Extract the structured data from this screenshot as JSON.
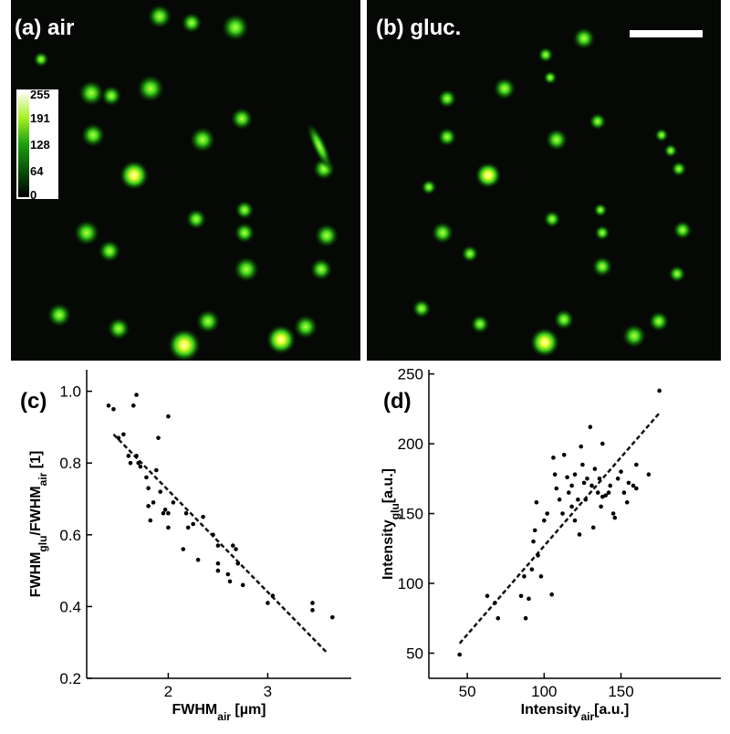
{
  "images": [
    {
      "label": "(a) air"
    },
    {
      "label": "(b) gluc."
    }
  ],
  "colorbar": {
    "ticks": [
      255,
      191,
      128,
      64,
      0
    ]
  },
  "chart_data": [
    {
      "type": "scatter",
      "label": "(c)",
      "xlabel": [
        "FWHM",
        "air",
        " [µm]"
      ],
      "ylabel": [
        "FWHM",
        "glu",
        "/FWHM",
        "air",
        " [1]"
      ],
      "xlim": [
        1.18,
        3.84
      ],
      "xticks": [
        2,
        3
      ],
      "ylim": [
        0.2,
        1.06
      ],
      "yticks": [
        0.2,
        0.4,
        0.6,
        0.8,
        {
          "value": 1.0,
          "label": "1.0"
        }
      ],
      "color": "#000000",
      "x": [
        1.4,
        1.45,
        1.5,
        1.55,
        1.6,
        1.62,
        1.65,
        1.68,
        1.68,
        1.7,
        1.72,
        1.78,
        1.8,
        1.8,
        1.82,
        1.85,
        1.88,
        1.9,
        1.92,
        1.95,
        1.97,
        2.0,
        2.0,
        2.0,
        2.05,
        2.15,
        2.18,
        2.2,
        2.25,
        2.3,
        2.35,
        2.45,
        2.5,
        2.5,
        2.5,
        2.6,
        2.62,
        2.65,
        2.68,
        2.7,
        2.75,
        3.0,
        3.05,
        3.45,
        3.45,
        3.65
      ],
      "y": [
        0.96,
        0.95,
        0.87,
        0.88,
        0.82,
        0.8,
        0.96,
        0.99,
        0.82,
        0.8,
        0.79,
        0.76,
        0.73,
        0.68,
        0.64,
        0.69,
        0.78,
        0.87,
        0.72,
        0.66,
        0.67,
        0.93,
        0.66,
        0.62,
        0.69,
        0.56,
        0.66,
        0.62,
        0.63,
        0.53,
        0.65,
        0.6,
        0.57,
        0.52,
        0.5,
        0.49,
        0.47,
        0.57,
        0.56,
        0.52,
        0.46,
        0.41,
        0.43,
        0.41,
        0.39,
        0.37
      ],
      "fit": {
        "x": [
          1.45,
          3.6
        ],
        "y": [
          0.88,
          0.27
        ]
      }
    },
    {
      "type": "scatter",
      "label": "(d)",
      "xlabel": [
        "Intensity",
        "air",
        "[a.u.]"
      ],
      "ylabel": [
        "Intensity",
        "glu",
        "[a.u.]"
      ],
      "xlim": [
        25,
        215
      ],
      "xticks": [
        50,
        100,
        150
      ],
      "ylim": [
        32,
        253
      ],
      "yticks": [
        50,
        100,
        150,
        200,
        250
      ],
      "color": "#000000",
      "x": [
        45,
        63,
        68,
        70,
        85,
        87,
        88,
        90,
        92,
        93,
        94,
        95,
        96,
        98,
        100,
        102,
        105,
        106,
        107,
        108,
        110,
        112,
        113,
        115,
        116,
        118,
        118,
        120,
        120,
        122,
        123,
        124,
        125,
        126,
        127,
        128,
        130,
        131,
        132,
        133,
        135,
        136,
        137,
        138,
        138,
        140,
        142,
        143,
        145,
        146,
        148,
        150,
        152,
        154,
        155,
        158,
        160,
        160,
        168,
        175
      ],
      "y": [
        49,
        91,
        86,
        75,
        91,
        105,
        75,
        89,
        110,
        130,
        138,
        158,
        120,
        105,
        145,
        150,
        92,
        190,
        178,
        168,
        160,
        150,
        192,
        176,
        165,
        170,
        155,
        178,
        145,
        160,
        135,
        198,
        185,
        172,
        160,
        175,
        212,
        170,
        140,
        182,
        165,
        175,
        155,
        200,
        162,
        163,
        165,
        170,
        150,
        147,
        175,
        180,
        165,
        158,
        172,
        170,
        168,
        185,
        178,
        238
      ],
      "fit": {
        "x": [
          45,
          175
        ],
        "y": [
          57,
          222
        ]
      }
    }
  ]
}
